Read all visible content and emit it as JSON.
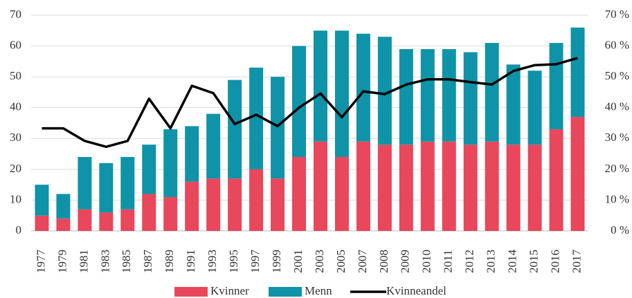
{
  "chart_data": {
    "type": "bar",
    "stacked": true,
    "categories": [
      "1977",
      "1979",
      "1981",
      "1983",
      "1985",
      "1987",
      "1989",
      "1991",
      "1993",
      "1995",
      "1997",
      "1999",
      "2001",
      "2003",
      "2005",
      "2007",
      "2008",
      "2009",
      "2010",
      "2011",
      "2012",
      "2013",
      "2014",
      "2015",
      "2016",
      "2017"
    ],
    "series": [
      {
        "name": "Kvinner",
        "type": "bar",
        "color": "#e8475c",
        "values": [
          5,
          4,
          7,
          6,
          7,
          12,
          11,
          16,
          17,
          17,
          20,
          17,
          24,
          29,
          24,
          29,
          28,
          28,
          29,
          29,
          28,
          29,
          28,
          28,
          33,
          37
        ]
      },
      {
        "name": "Menn",
        "type": "bar",
        "color": "#0f93a8",
        "values": [
          10,
          8,
          17,
          16,
          17,
          16,
          22,
          18,
          21,
          32,
          33,
          33,
          36,
          36,
          41,
          35,
          35,
          31,
          30,
          30,
          30,
          32,
          26,
          24,
          28,
          29
        ]
      },
      {
        "name": "Kvinneandel",
        "type": "line",
        "axis": "y2",
        "color": "#000000",
        "values": [
          33.3,
          33.3,
          29.2,
          27.3,
          29.2,
          42.9,
          33.3,
          47.1,
          44.7,
          34.7,
          37.7,
          34,
          40,
          44.6,
          36.9,
          45.3,
          44.4,
          47.5,
          49.2,
          49.2,
          48.3,
          47.5,
          51.9,
          53.8,
          54.1,
          56.1
        ]
      }
    ],
    "ylim": [
      0,
      70
    ],
    "yticks": [
      0,
      10,
      20,
      30,
      40,
      50,
      60,
      70
    ],
    "y2lim": [
      0,
      70
    ],
    "y2ticks": [
      {
        "value": 0,
        "label": "0 %"
      },
      {
        "value": 10,
        "label": "10 %"
      },
      {
        "value": 20,
        "label": "20 %"
      },
      {
        "value": 30,
        "label": "30 %"
      },
      {
        "value": 40,
        "label": "40 %"
      },
      {
        "value": 50,
        "label": "50 %"
      },
      {
        "value": 60,
        "label": "60 %"
      },
      {
        "value": 70,
        "label": "70 %"
      }
    ],
    "grid": true,
    "legend": "bottom"
  }
}
